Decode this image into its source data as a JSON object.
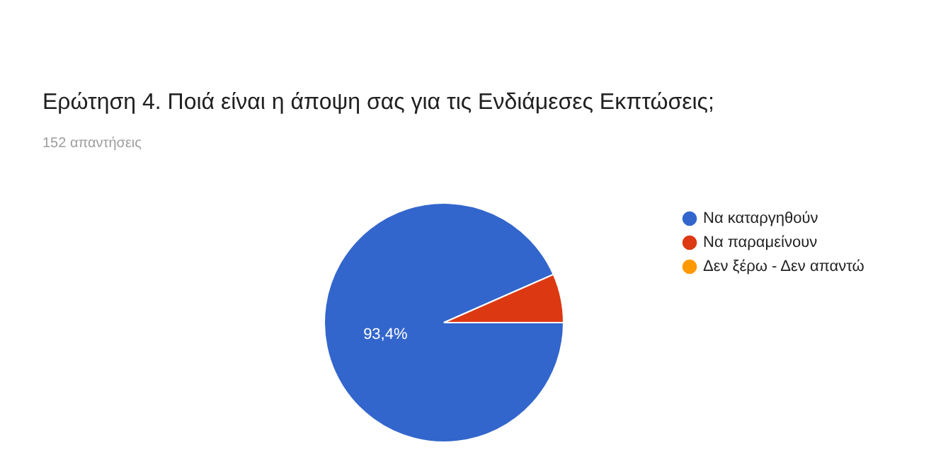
{
  "chart_data": {
    "type": "pie",
    "title": "Ερώτηση 4. Ποιά είναι η άποψη σας για τις Ενδιάμεσες Εκπτώσεις;",
    "subtitle": "152 απαντήσεις",
    "categories": [
      "Να καταργηθούν",
      "Να παραμείνουν",
      "Δεν ξέρω - Δεν απαντώ"
    ],
    "values": [
      93.4,
      6.6,
      0
    ],
    "colors": [
      "#3366cc",
      "#dc3912",
      "#ff9900"
    ],
    "value_labels": [
      "93,4%",
      null,
      null
    ],
    "legend": "right"
  }
}
